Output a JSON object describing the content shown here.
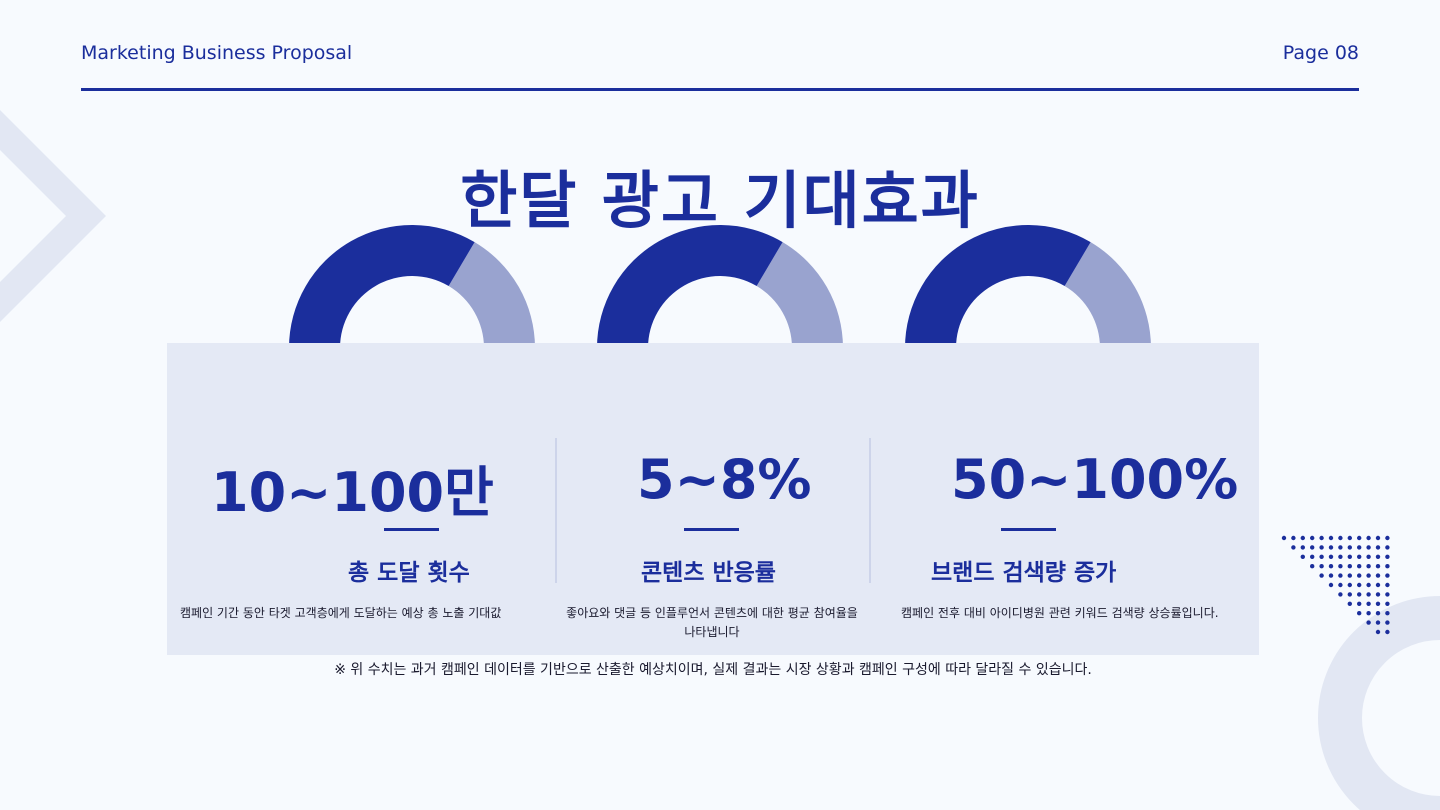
{
  "header": {
    "left": "Marketing Business Proposal",
    "right": "Page 08"
  },
  "title": "한달 광고 기대효과",
  "colors": {
    "primary": "#1b2e9c",
    "light_arc": "#99a3cf",
    "panel": "#e4e9f5",
    "background": "#f7fafe"
  },
  "metrics": [
    {
      "value": "10~100만",
      "label": "총 도달 횟수",
      "description": "캠페인 기간 동안 타겟 고객층에게 도달하는 예상 총 노출 기대값",
      "gauge_fraction": 0.67
    },
    {
      "value": "5~8%",
      "label": "콘텐츠 반응률",
      "description": "좋아요와 댓글 등 인플루언서 콘텐츠에 대한 평균 참여율을 나타냅니다",
      "gauge_fraction": 0.67
    },
    {
      "value": "50~100%",
      "label": "브랜드 검색량 증가",
      "description": "캠페인 전후 대비 아이디병원 관련 키워드 검색량 상승률입니다.",
      "gauge_fraction": 0.67
    }
  ],
  "footnote": "※ 위 수치는 과거 캠페인 데이터를 기반으로 산출한 예상치이며, 실제 결과는 시장 상황과 캠페인 구성에 따라 달라질 수 있습니다."
}
